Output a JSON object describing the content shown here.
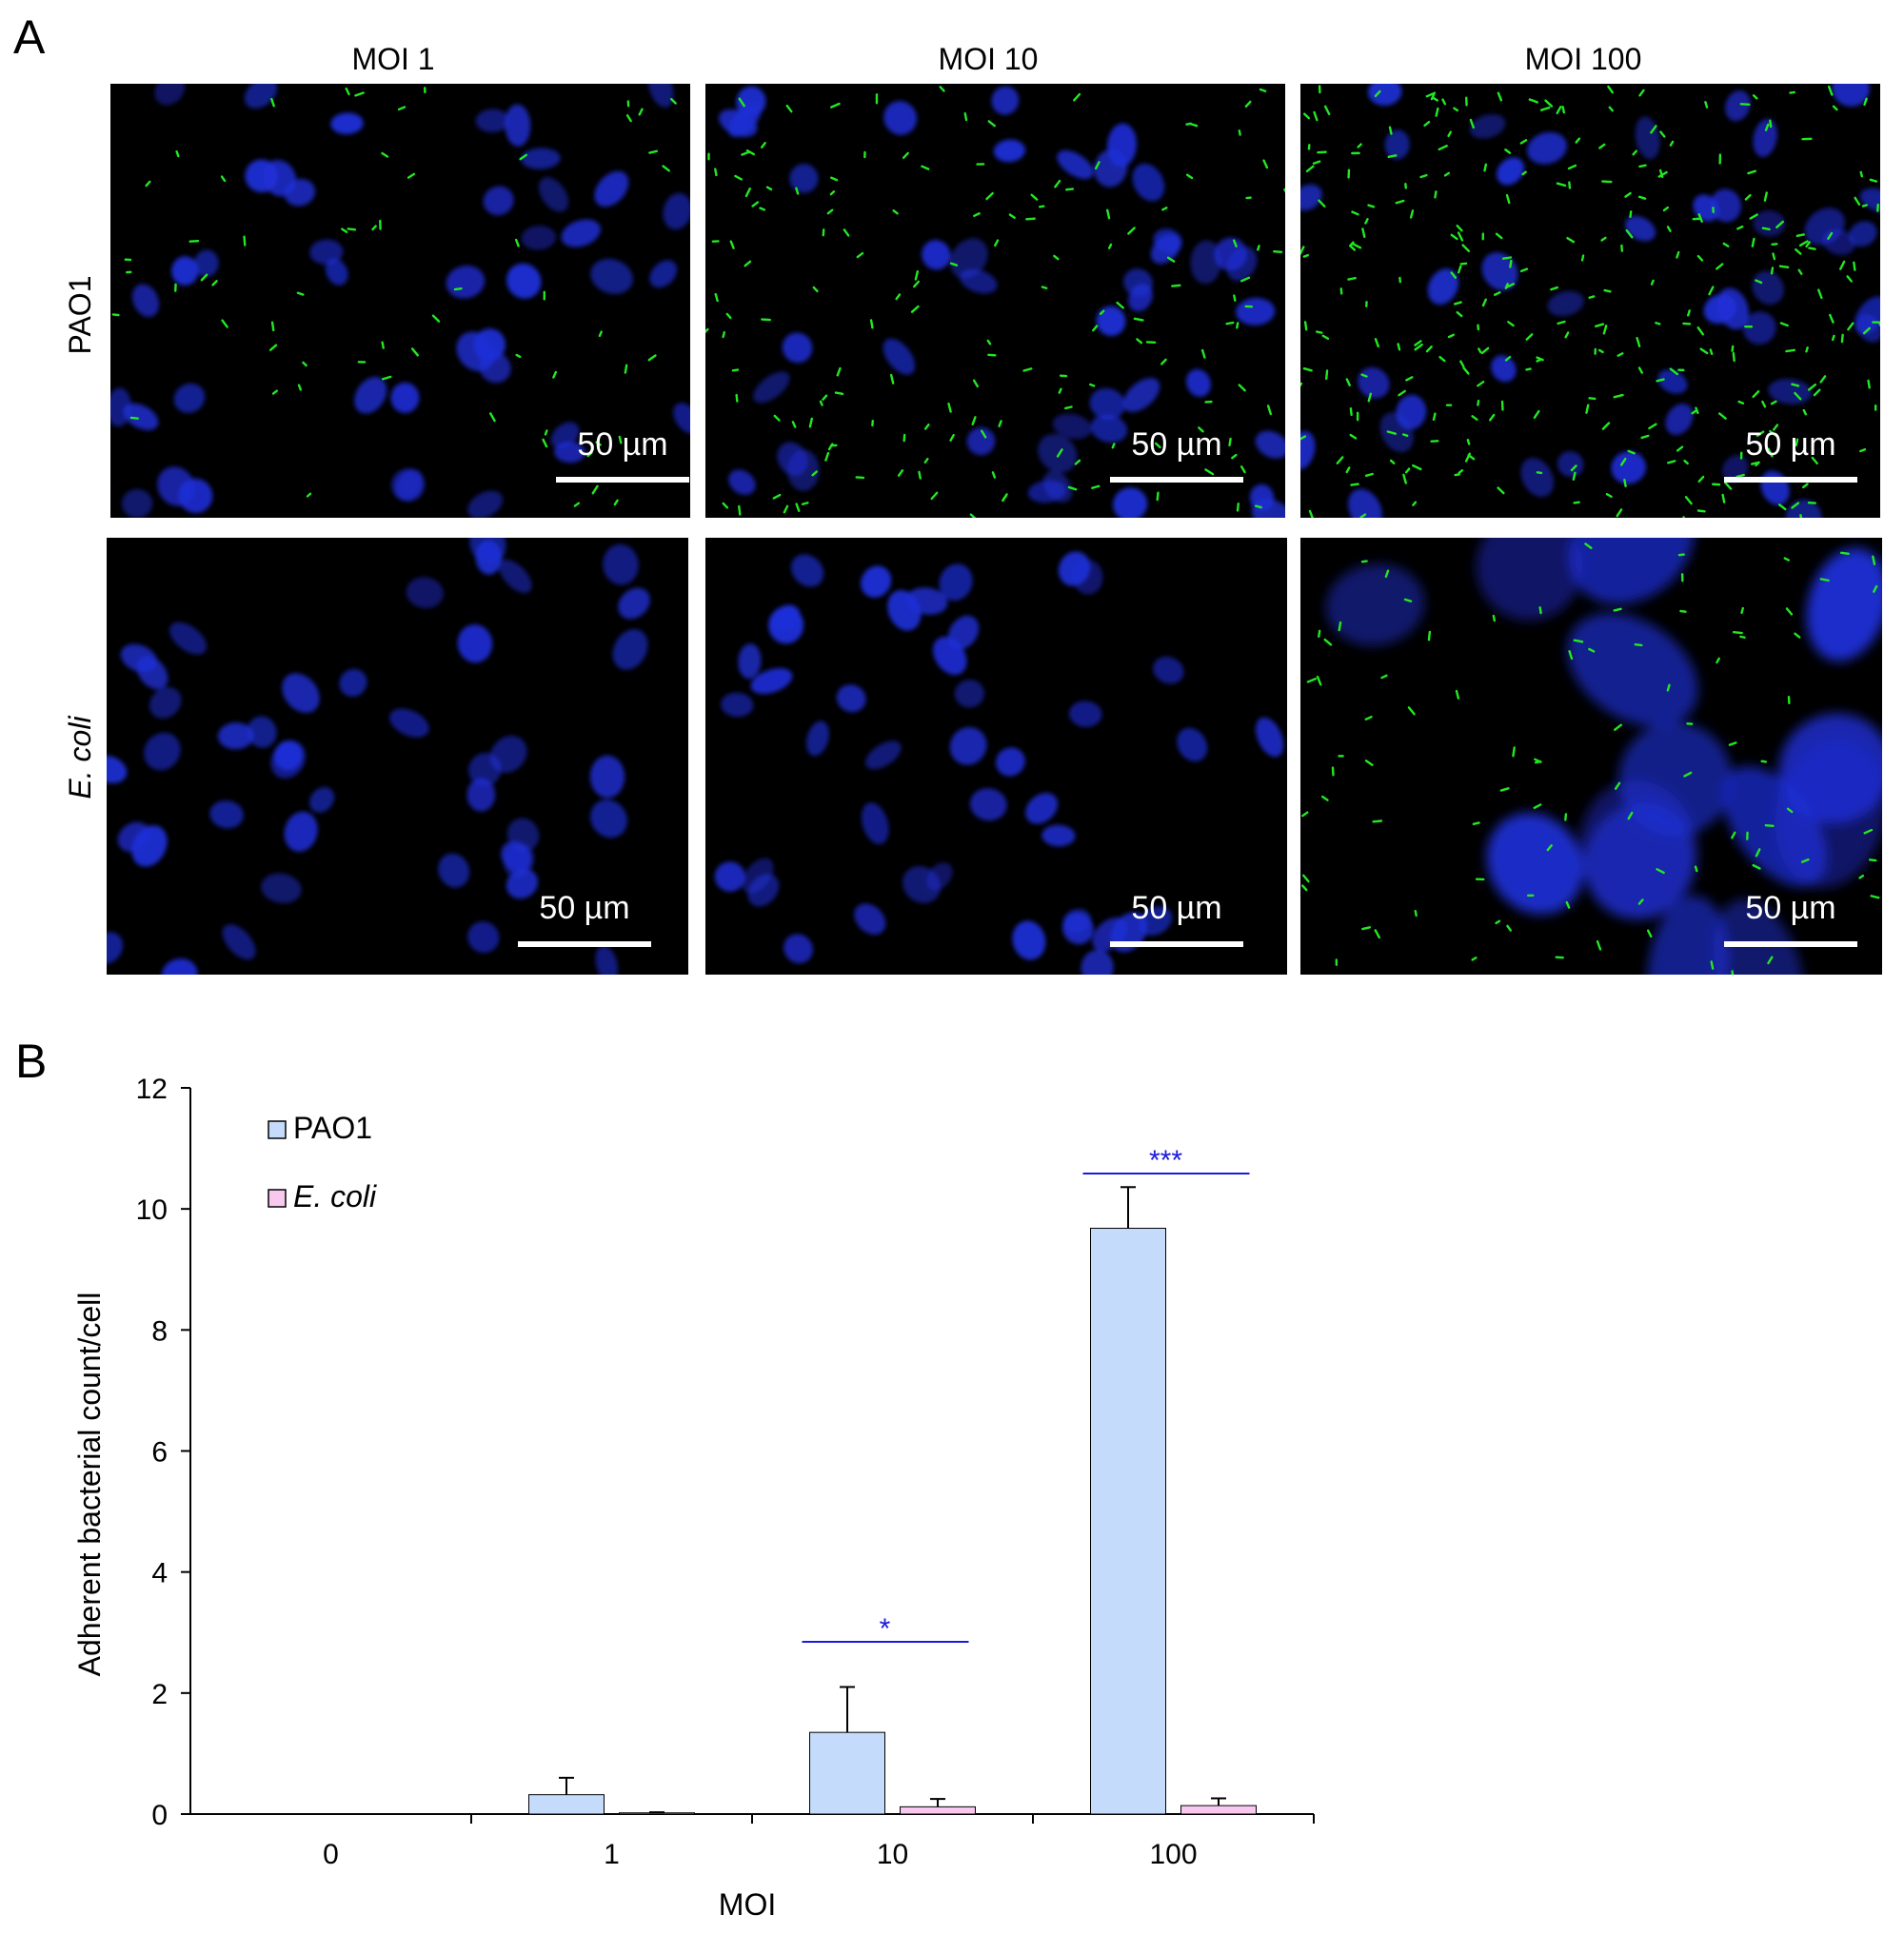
{
  "figure": {
    "panel_a_letter": "A",
    "panel_b_letter": "B",
    "columns": [
      "MOI 1",
      "MOI 10",
      "MOI 100"
    ],
    "rows": [
      {
        "label": "PAO1",
        "italic": false
      },
      {
        "label": "E. coli",
        "italic": true
      }
    ],
    "scale_bar_label": "50 µm",
    "colors": {
      "nuclei": "#1f2fd8",
      "bacteria": "#22e822",
      "background": "#000000"
    },
    "bacteria_density": [
      [
        2,
        5,
        10
      ],
      [
        0,
        0,
        3
      ]
    ]
  },
  "chart_data": {
    "type": "bar",
    "categories": [
      "0",
      "1",
      "10",
      "100"
    ],
    "series": [
      {
        "name": "PAO1",
        "italic": false,
        "color": "#c5dbfb",
        "values": [
          0,
          0.32,
          1.35,
          9.68
        ],
        "errors": [
          0,
          0.28,
          0.75,
          0.68
        ]
      },
      {
        "name": "E. coli",
        "italic": true,
        "color": "#f9c8ee",
        "values": [
          0,
          0.02,
          0.12,
          0.14
        ],
        "errors": [
          0,
          0.01,
          0.13,
          0.12
        ]
      }
    ],
    "xlabel": "MOI",
    "ylabel": "Adherent bacterial count/cell",
    "ylim": [
      0,
      12
    ],
    "yticks": [
      0,
      2,
      4,
      6,
      8,
      10,
      12
    ],
    "legend": "top-left",
    "significance": [
      {
        "category": "10",
        "label": "*",
        "color": "#1a1adc"
      },
      {
        "category": "100",
        "label": "***",
        "color": "#1a1adc"
      }
    ]
  }
}
